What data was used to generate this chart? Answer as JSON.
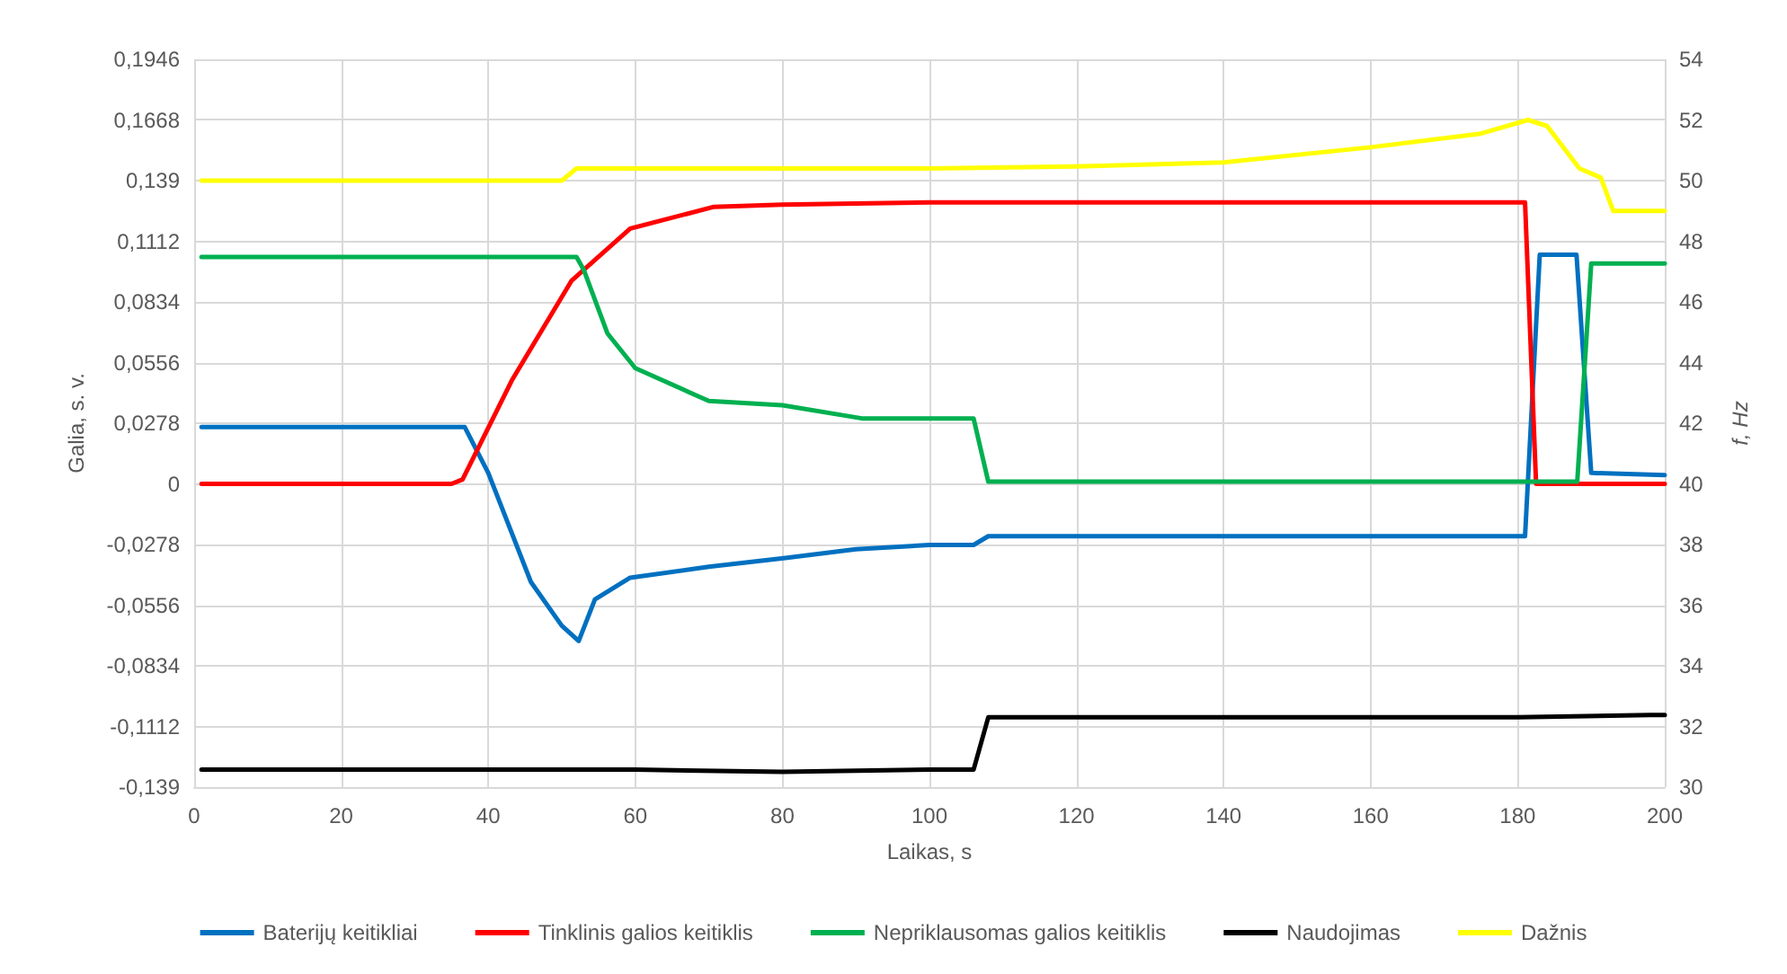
{
  "chart_data": {
    "type": "line",
    "xlabel": "Laikas, s",
    "ylabel": "Galia, s. v.",
    "y2label": "f, Hz",
    "xlim": [
      0,
      200
    ],
    "xticks": [
      0,
      20,
      40,
      60,
      80,
      100,
      120,
      140,
      160,
      180,
      200
    ],
    "ylim": [
      -0.139,
      0.1946
    ],
    "yticks": [
      {
        "value": 0.1946,
        "label": "0,1946"
      },
      {
        "value": 0.1668,
        "label": "0,1668"
      },
      {
        "value": 0.139,
        "label": "0,139"
      },
      {
        "value": 0.1112,
        "label": "0,1112"
      },
      {
        "value": 0.0834,
        "label": "0,0834"
      },
      {
        "value": 0.0556,
        "label": "0,0556"
      },
      {
        "value": 0.0278,
        "label": "0,0278"
      },
      {
        "value": 0,
        "label": "0"
      },
      {
        "value": -0.0278,
        "label": "-0,0278"
      },
      {
        "value": -0.0556,
        "label": "-0,0556"
      },
      {
        "value": -0.0834,
        "label": "-0,0834"
      },
      {
        "value": -0.1112,
        "label": "-0,1112"
      },
      {
        "value": -0.139,
        "label": "-0,139"
      }
    ],
    "y2lim": [
      30,
      54
    ],
    "y2ticks": [
      30,
      32,
      34,
      36,
      38,
      40,
      42,
      44,
      46,
      48,
      50,
      52,
      54
    ],
    "grid": true,
    "legend": "bottom",
    "marker": "none",
    "line_style": "solid",
    "series": [
      {
        "name": "Baterijų keitikliai",
        "color": "#0070c0",
        "x": [
          1,
          10,
          20,
          30,
          35,
          36.8,
          40,
          45.8,
          50,
          52.3,
          54.5,
          59.3,
          70,
          80.4,
          90,
          100,
          106,
          108,
          120,
          140,
          160,
          181,
          183,
          188,
          190,
          200
        ],
        "values": [
          0.026,
          0.026,
          0.026,
          0.026,
          0.026,
          0.026,
          0.005,
          -0.045,
          -0.065,
          -0.072,
          -0.053,
          -0.043,
          -0.038,
          -0.034,
          -0.03,
          -0.028,
          -0.028,
          -0.024,
          -0.024,
          -0.024,
          -0.024,
          -0.024,
          0.105,
          0.105,
          0.005,
          0.004
        ]
      },
      {
        "name": "Tinklinis galios keitiklis",
        "color": "#ff0000",
        "x": [
          1,
          20,
          35,
          36.5,
          43.3,
          51.3,
          59.3,
          70.7,
          80,
          100,
          120,
          140,
          160,
          181,
          182.5,
          200
        ],
        "values": [
          0,
          0,
          0,
          0.002,
          0.048,
          0.093,
          0.117,
          0.127,
          0.128,
          0.129,
          0.129,
          0.129,
          0.129,
          0.129,
          0,
          0
        ]
      },
      {
        "name": "Nepriklausomas galios keitiklis",
        "color": "#00b050",
        "x": [
          1,
          10,
          20,
          30,
          40,
          52,
          53,
          56.2,
          60,
          70,
          80,
          90.8,
          106,
          108,
          120,
          140,
          160,
          180,
          188.1,
          190,
          200
        ],
        "values": [
          0.104,
          0.104,
          0.104,
          0.104,
          0.104,
          0.104,
          0.098,
          0.069,
          0.053,
          0.038,
          0.036,
          0.03,
          0.03,
          0.001,
          0.001,
          0.001,
          0.001,
          0.001,
          0.001,
          0.101,
          0.101
        ]
      },
      {
        "name": "Naudojimas",
        "color": "#000000",
        "x": [
          1,
          20,
          40,
          60,
          80,
          100,
          106,
          108,
          120,
          140,
          160,
          180,
          198,
          200
        ],
        "values": [
          -0.131,
          -0.131,
          -0.131,
          -0.131,
          -0.132,
          -0.131,
          -0.131,
          -0.107,
          -0.107,
          -0.107,
          -0.107,
          -0.107,
          -0.106,
          -0.106
        ]
      },
      {
        "name": "Dažnis",
        "color": "#ffff00",
        "axis": "y2",
        "x": [
          1,
          20,
          40,
          50,
          52,
          60,
          100,
          120,
          140,
          160,
          175,
          181.4,
          184,
          188.4,
          191.3,
          193,
          200
        ],
        "values": [
          50,
          50,
          50,
          50,
          50.4,
          50.4,
          50.4,
          50.47,
          50.6,
          51.1,
          51.55,
          52,
          51.8,
          50.4,
          50.1,
          49,
          49
        ]
      }
    ]
  }
}
